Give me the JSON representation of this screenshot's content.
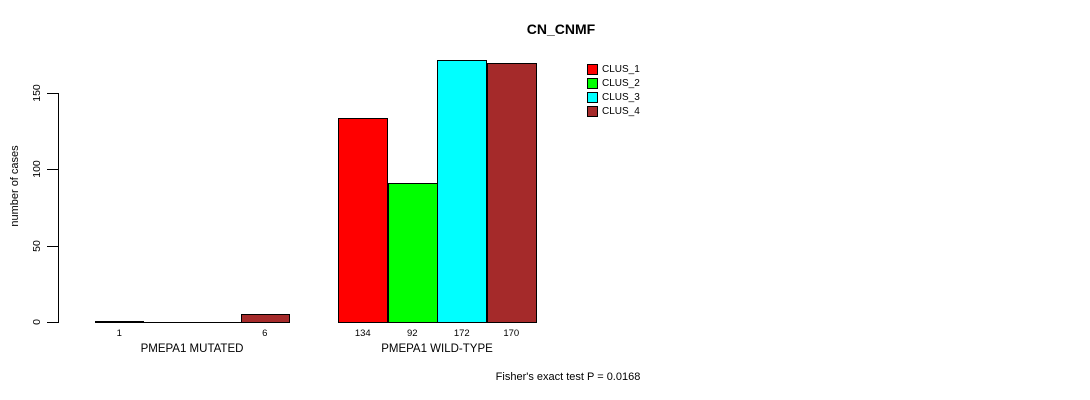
{
  "chart_data": {
    "type": "bar",
    "title": "CN_CNMF",
    "ylabel": "number of cases",
    "xlabel": "",
    "categories": [
      "PMEPA1 MUTATED",
      "PMEPA1 WILD-TYPE"
    ],
    "series": [
      {
        "name": "CLUS_1",
        "color": "#FF0000",
        "values": [
          1,
          134
        ]
      },
      {
        "name": "CLUS_2",
        "color": "#00FF00",
        "values": [
          0,
          92
        ]
      },
      {
        "name": "CLUS_3",
        "color": "#00FFFF",
        "values": [
          0,
          172
        ]
      },
      {
        "name": "CLUS_4",
        "color": "#A52A2A",
        "values": [
          6,
          170
        ]
      }
    ],
    "yticks": [
      0,
      50,
      100,
      150
    ],
    "ylim": [
      0,
      175
    ],
    "grid": false,
    "legend_position": "top-right",
    "bar_value_labels_shown": true,
    "zero_values_unlabeled": true,
    "annotation": "Fisher's exact test P = 0.0168"
  },
  "colors": {
    "background": "#FFFFFF",
    "text": "#000000",
    "bar_border": "#000000"
  }
}
